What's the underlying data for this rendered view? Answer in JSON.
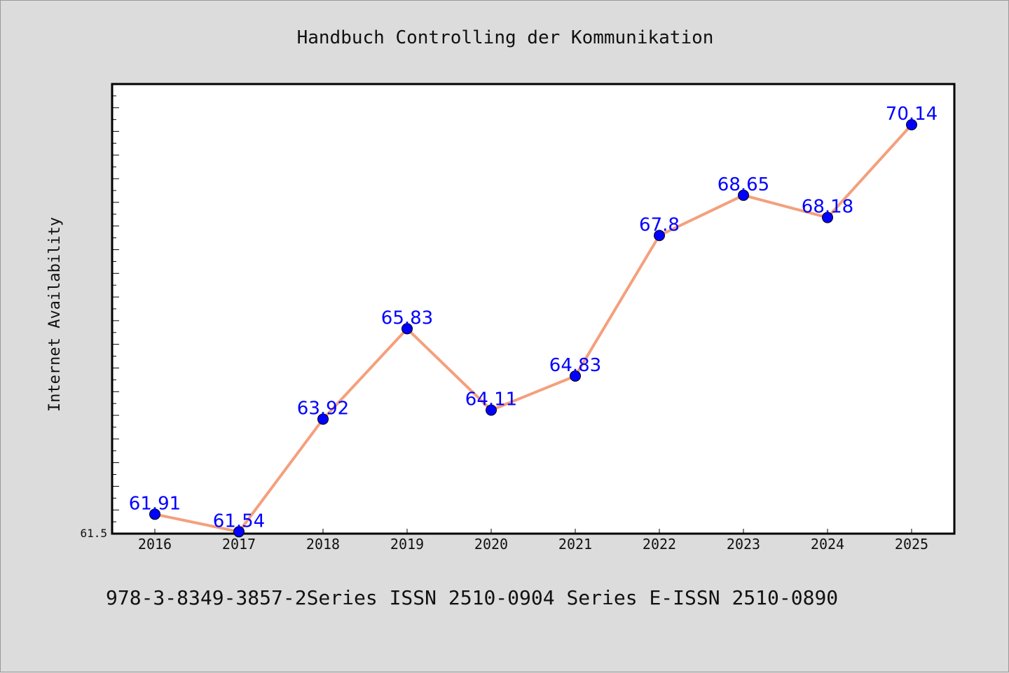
{
  "chart_data": {
    "type": "line",
    "title": "Handbuch Controlling der Kommunikation",
    "xlabel": "",
    "ylabel": "Internet Availability",
    "categories": [
      "2016",
      "2017",
      "2018",
      "2019",
      "2020",
      "2021",
      "2022",
      "2023",
      "2024",
      "2025"
    ],
    "series": [
      {
        "values": [
          61.91,
          61.54,
          63.92,
          65.83,
          64.11,
          64.83,
          67.8,
          68.65,
          68.18,
          70.14
        ],
        "labels": [
          "61.91",
          "61.54",
          "63.92",
          "65.83",
          "64.11",
          "64.83",
          "67.8",
          "68.65",
          "68.18",
          "70.14"
        ],
        "line_color": "#f4a07c",
        "marker_color": "#0000ff"
      }
    ],
    "ylim": [
      61.5,
      71.0
    ],
    "ytick_labels": [
      "61.5"
    ],
    "grid": false,
    "footer": "978-3-8349-3857-2Series ISSN 2510-0904 Series E-ISSN 2510-0890"
  },
  "colors": {
    "background": "#dcdcdc",
    "plot_background": "#ffffff",
    "line": "#f4a07c",
    "marker": "#0000ff",
    "data_label": "#0000ff"
  }
}
